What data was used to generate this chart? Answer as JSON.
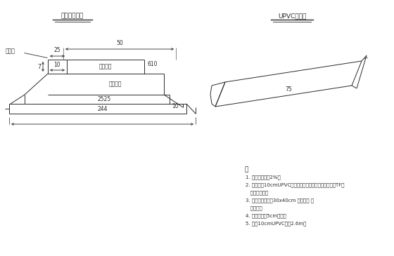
{
  "title_left": "桥面排水节点",
  "title_right": "UPVC排水管",
  "bg_color": "#ffffff",
  "line_color": "#2a2a2a",
  "notes_title": "注",
  "notes": [
    "1. 桥面排水坡度2%。",
    "2. 泄水孔径10cmUPVC管，螺栓、螺母连接并在孔边缘用TF制",
    "   防水嵌缝料。",
    "3. 混凝土承台尺寸30x40cm 根据板梁 坐",
    "   墩位置。",
    "4. 桥面铺装层5cm沥青。",
    "5. 选用10cmUPVC每根2.6m。"
  ],
  "dim_50": "50",
  "dim_25": "25",
  "dim_10": "10",
  "dim_7": "7",
  "dim_2525": "2525",
  "dim_10r": "10",
  "dim_244": "244",
  "dim_75": "75",
  "label_road": "路缘石",
  "label_610": "610",
  "label_deck": "桥面铺装",
  "label_beam": "空心板梁"
}
